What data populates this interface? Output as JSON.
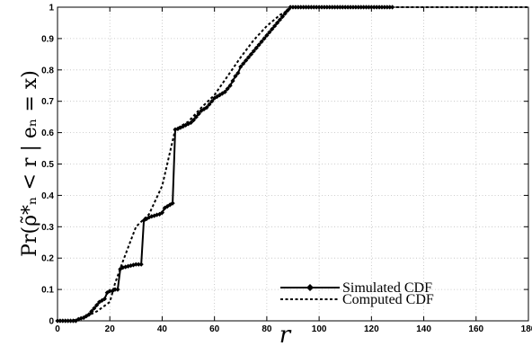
{
  "chart_data": {
    "type": "line",
    "xlabel": "r",
    "ylabel": "Pr(ρ̃*ₙ < r | eₙ = x)",
    "xlim": [
      0,
      180
    ],
    "ylim": [
      0,
      1
    ],
    "xticks": [
      "0",
      "20",
      "40",
      "60",
      "80",
      "100",
      "120",
      "140",
      "160",
      "180"
    ],
    "yticks": [
      "0",
      "0.1",
      "0.2",
      "0.3",
      "0.4",
      "0.5",
      "0.6",
      "0.7",
      "0.8",
      "0.9",
      "1"
    ],
    "grid": true,
    "legend_position": "bottom-right",
    "series": [
      {
        "name": "Simulated CDF",
        "style": "solid-diamond",
        "color": "#000000",
        "x": [
          0,
          1,
          2,
          3,
          4,
          5,
          6,
          7,
          8,
          9,
          10,
          11,
          12,
          13,
          14,
          15,
          16,
          17,
          18,
          19,
          20,
          21,
          22,
          23,
          24,
          25,
          26,
          27,
          28,
          29,
          30,
          31,
          32,
          33,
          34,
          35,
          36,
          37,
          38,
          39,
          40,
          41,
          42,
          43,
          44,
          45,
          46,
          47,
          48,
          49,
          50,
          51,
          52,
          53,
          54,
          55,
          56,
          57,
          58,
          59,
          60,
          61,
          62,
          63,
          64,
          65,
          66,
          67,
          68,
          69,
          70,
          71,
          72,
          73,
          74,
          75,
          76,
          77,
          78,
          79,
          80,
          81,
          82,
          83,
          84,
          85,
          86,
          87,
          88,
          89,
          90,
          91,
          92,
          93,
          94,
          95,
          96,
          97,
          98,
          99,
          100,
          101,
          102,
          103,
          104,
          105,
          106,
          107,
          108,
          109,
          110,
          111,
          112,
          113,
          114,
          115,
          116,
          117,
          118,
          119,
          120,
          121,
          122,
          123,
          124,
          125,
          126,
          127,
          128
        ],
        "y": [
          0,
          0,
          0,
          0,
          0,
          0,
          0,
          0,
          0.005,
          0.008,
          0.01,
          0.015,
          0.02,
          0.03,
          0.04,
          0.05,
          0.06,
          0.065,
          0.07,
          0.09,
          0.095,
          0.095,
          0.1,
          0.1,
          0.165,
          0.17,
          0.172,
          0.174,
          0.176,
          0.178,
          0.18,
          0.18,
          0.18,
          0.32,
          0.325,
          0.33,
          0.333,
          0.335,
          0.338,
          0.34,
          0.345,
          0.36,
          0.365,
          0.37,
          0.375,
          0.61,
          0.612,
          0.616,
          0.62,
          0.624,
          0.628,
          0.632,
          0.64,
          0.65,
          0.66,
          0.67,
          0.675,
          0.68,
          0.69,
          0.7,
          0.71,
          0.715,
          0.72,
          0.725,
          0.73,
          0.74,
          0.75,
          0.765,
          0.78,
          0.79,
          0.81,
          0.82,
          0.83,
          0.84,
          0.85,
          0.86,
          0.87,
          0.88,
          0.89,
          0.9,
          0.91,
          0.92,
          0.93,
          0.94,
          0.95,
          0.96,
          0.97,
          0.98,
          0.99,
          1,
          1,
          1,
          1,
          1,
          1,
          1,
          1,
          1,
          1,
          1,
          1,
          1,
          1,
          1,
          1,
          1,
          1,
          1,
          1,
          1,
          1,
          1,
          1,
          1,
          1,
          1,
          1,
          1,
          1,
          1,
          1,
          1,
          1,
          1,
          1,
          1,
          1,
          1,
          1
        ]
      },
      {
        "name": "Computed CDF",
        "style": "dashed",
        "color": "#000000",
        "x": [
          0,
          5,
          10,
          15,
          20,
          22,
          25,
          30,
          35,
          40,
          45,
          50,
          55,
          60,
          65,
          70,
          75,
          80,
          85,
          90,
          95,
          100,
          120,
          140,
          160,
          180
        ],
        "y": [
          0,
          0,
          0.01,
          0.03,
          0.06,
          0.12,
          0.19,
          0.3,
          0.34,
          0.43,
          0.61,
          0.635,
          0.68,
          0.72,
          0.78,
          0.84,
          0.895,
          0.94,
          0.975,
          1,
          1,
          1,
          1,
          1,
          1,
          1
        ]
      }
    ]
  }
}
